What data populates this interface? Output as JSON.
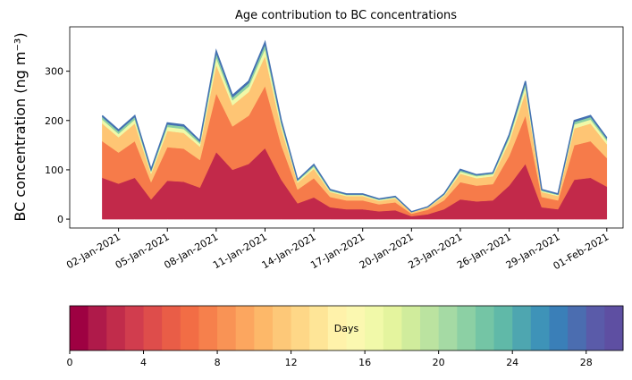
{
  "chart_data": [
    {
      "type": "stacked_area",
      "title": "Age contribution to BC concentrations",
      "y_label": "BC concentration (ng m⁻³)",
      "x": [
        "2021-01-01",
        "2021-01-02",
        "2021-01-03",
        "2021-01-04",
        "2021-01-05",
        "2021-01-06",
        "2021-01-07",
        "2021-01-08",
        "2021-01-09",
        "2021-01-10",
        "2021-01-11",
        "2021-01-12",
        "2021-01-13",
        "2021-01-14",
        "2021-01-15",
        "2021-01-16",
        "2021-01-17",
        "2021-01-18",
        "2021-01-19",
        "2021-01-20",
        "2021-01-21",
        "2021-01-22",
        "2021-01-23",
        "2021-01-24",
        "2021-01-25",
        "2021-01-26",
        "2021-01-27",
        "2021-01-28",
        "2021-01-29",
        "2021-01-30",
        "2021-01-31",
        "2021-02-01"
      ],
      "series": [
        {
          "color": "#c2294a",
          "values": [
            84,
            72,
            84,
            40,
            78,
            76,
            64,
            136,
            100,
            112,
            144,
            80,
            32,
            44,
            24,
            20,
            20,
            16,
            18,
            6,
            10,
            20,
            40,
            36,
            38,
            68,
            112,
            24,
            20,
            80,
            84,
            66
          ]
        },
        {
          "color": "#f67b4a",
          "values": [
            74,
            63,
            74,
            35,
            68,
            67,
            56,
            119,
            88,
            98,
            126,
            70,
            28,
            39,
            21,
            18,
            18,
            14,
            16,
            5,
            9,
            18,
            35,
            32,
            33,
            60,
            98,
            21,
            18,
            70,
            74,
            58
          ]
        },
        {
          "color": "#fec574",
          "values": [
            36,
            31,
            36,
            17,
            33,
            32,
            27,
            58,
            43,
            48,
            61,
            34,
            14,
            19,
            10,
            9,
            9,
            7,
            8,
            3,
            4,
            9,
            17,
            15,
            16,
            29,
            48,
            10,
            9,
            34,
            36,
            28
          ]
        },
        {
          "color": "#f0f9a8",
          "values": [
            8,
            7,
            8,
            4,
            8,
            8,
            6,
            14,
            10,
            11,
            14,
            8,
            3,
            4,
            2,
            2,
            2,
            2,
            2,
            1,
            1,
            2,
            4,
            4,
            4,
            7,
            11,
            2,
            2,
            8,
            8,
            7
          ]
        },
        {
          "color": "#8cd0a4",
          "values": [
            5,
            5,
            5,
            3,
            5,
            5,
            4,
            9,
            6,
            7,
            9,
            5,
            2,
            3,
            2,
            1,
            1,
            1,
            1,
            0,
            1,
            1,
            3,
            2,
            2,
            4,
            7,
            2,
            1,
            5,
            5,
            4
          ]
        },
        {
          "color": "#4471b2",
          "values": [
            3,
            3,
            3,
            2,
            3,
            3,
            2,
            5,
            4,
            4,
            5,
            3,
            1,
            2,
            1,
            1,
            1,
            1,
            1,
            0,
            0,
            1,
            2,
            1,
            1,
            3,
            4,
            1,
            1,
            3,
            3,
            2
          ]
        }
      ],
      "xlim": [
        "2020-12-30",
        "2021-02-02"
      ],
      "xticks": [
        {
          "value": "2021-01-02",
          "label": "02-Jan-2021"
        },
        {
          "value": "2021-01-05",
          "label": "05-Jan-2021"
        },
        {
          "value": "2021-01-08",
          "label": "08-Jan-2021"
        },
        {
          "value": "2021-01-11",
          "label": "11-Jan-2021"
        },
        {
          "value": "2021-01-14",
          "label": "14-Jan-2021"
        },
        {
          "value": "2021-01-17",
          "label": "17-Jan-2021"
        },
        {
          "value": "2021-01-20",
          "label": "20-Jan-2021"
        },
        {
          "value": "2021-01-23",
          "label": "23-Jan-2021"
        },
        {
          "value": "2021-01-26",
          "label": "26-Jan-2021"
        },
        {
          "value": "2021-01-29",
          "label": "29-Jan-2021"
        },
        {
          "value": "2021-02-01",
          "label": "01-Feb-2021"
        }
      ],
      "ylim": [
        -18,
        390
      ],
      "yticks": [
        0,
        100,
        200,
        300
      ]
    },
    {
      "type": "colorbar",
      "label": "Days",
      "xlim": [
        0,
        30
      ],
      "xticks": [
        0,
        4,
        8,
        12,
        16,
        20,
        24,
        28
      ],
      "colors": [
        "#9e0142",
        "#af1a4a",
        "#c12c4b",
        "#d13d4e",
        "#de4d4b",
        "#e95d47",
        "#f26d45",
        "#f6804c",
        "#f99355",
        "#fca65f",
        "#fdb869",
        "#fdc878",
        "#fed787",
        "#fee597",
        "#fff2aa",
        "#fbf8b0",
        "#f1f9a9",
        "#e4f49e",
        "#d0ec9c",
        "#bbe3a0",
        "#a5daa4",
        "#8cd0a4",
        "#74c5a5",
        "#60b9a8",
        "#4ea6b0",
        "#3e93b8",
        "#3a7fb8",
        "#4b6db0",
        "#5a5ba9",
        "#5e4fa2"
      ]
    }
  ]
}
